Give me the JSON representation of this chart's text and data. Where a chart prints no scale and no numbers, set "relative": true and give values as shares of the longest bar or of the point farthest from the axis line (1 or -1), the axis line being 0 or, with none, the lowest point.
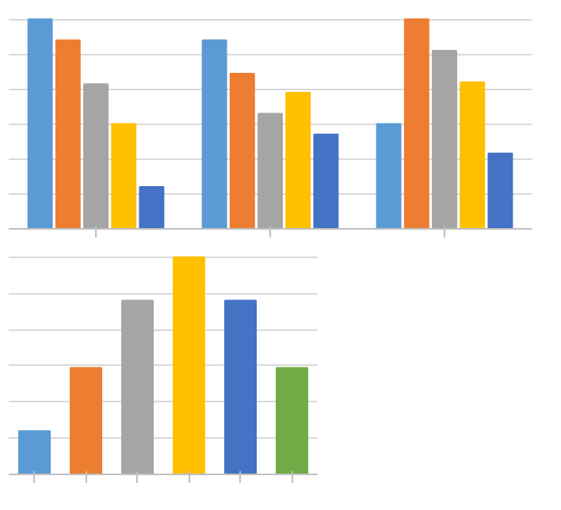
{
  "chart_data": [
    {
      "type": "bar",
      "relative": true,
      "grid": "y",
      "categories": [
        null,
        null,
        null
      ],
      "series": [
        {
          "color": "#5b9bd5",
          "values": [
            1.0,
            0.9,
            0.5
          ]
        },
        {
          "color": "#ed7d31",
          "values": [
            0.9,
            0.74,
            1.0
          ]
        },
        {
          "color": "#a5a5a5",
          "values": [
            0.69,
            0.55,
            0.85
          ]
        },
        {
          "color": "#ffc000",
          "values": [
            0.5,
            0.65,
            0.7
          ]
        },
        {
          "color": "#4472c4",
          "values": [
            0.2,
            0.45,
            0.36
          ]
        }
      ]
    },
    {
      "type": "bar",
      "relative": true,
      "grid": "y",
      "categories": [
        null,
        null,
        null,
        null,
        null,
        null
      ],
      "values": [
        0.2,
        0.49,
        0.8,
        1.0,
        0.8,
        0.49
      ],
      "colors": [
        "#5b9bd5",
        "#ed7d31",
        "#a5a5a5",
        "#ffc000",
        "#4472c4",
        "#70ad47"
      ]
    }
  ]
}
